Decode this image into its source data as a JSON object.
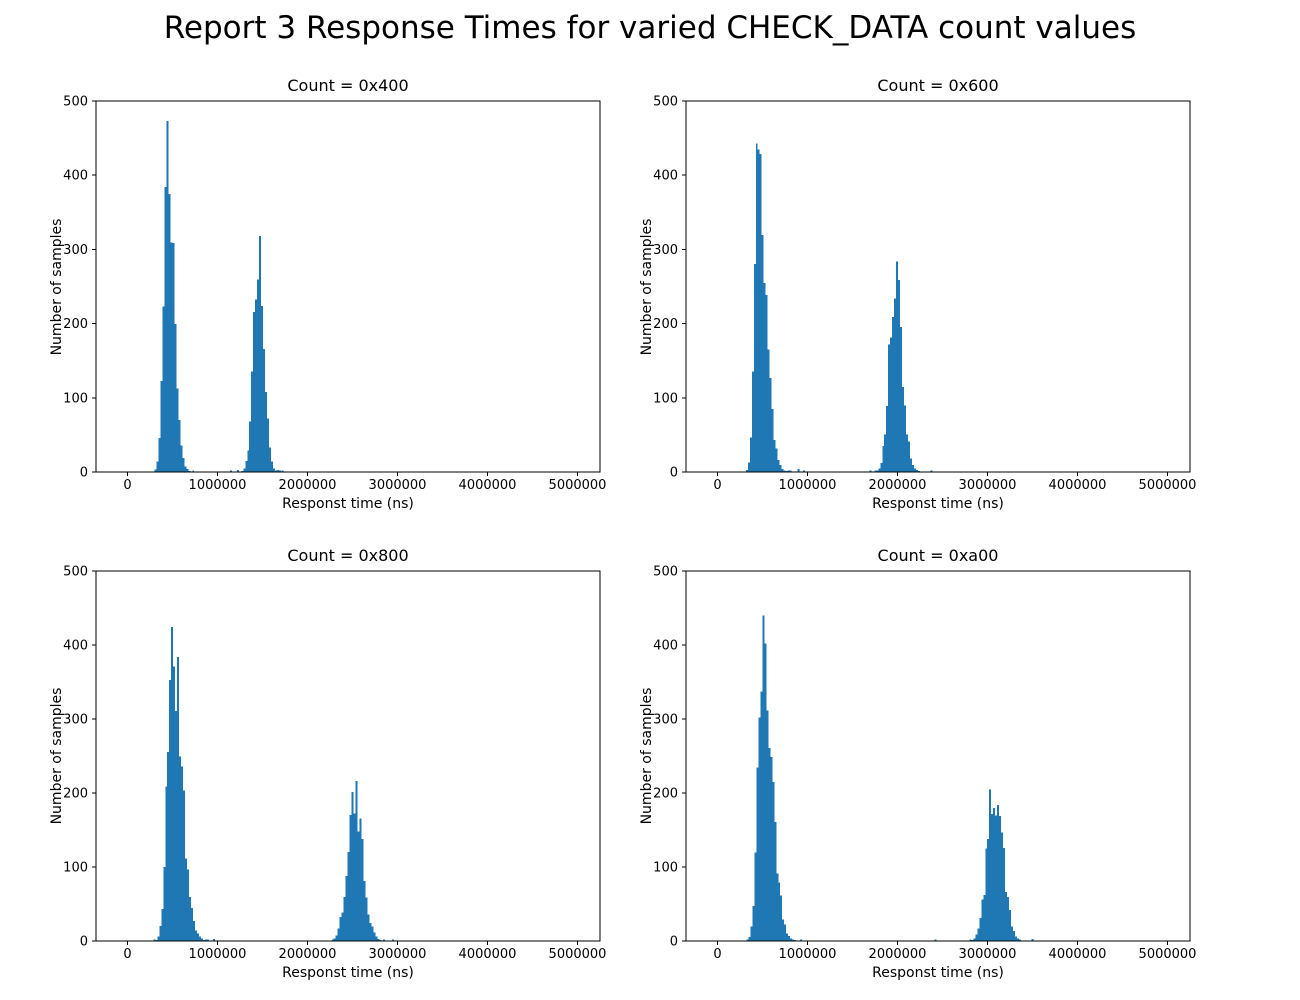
{
  "figure": {
    "title": "Report 3 Response Times for varied CHECK_DATA count values",
    "background_color": "#ffffff",
    "bar_color": "#1f77b4",
    "axis_color": "#000000"
  },
  "chart_data": [
    {
      "type": "bar",
      "key": "0x400",
      "title": "Count = 0x400",
      "xlabel": "Responst time (ns)",
      "ylabel": "Number of samples",
      "xlim": [
        -350000,
        5250000
      ],
      "ylim": [
        0,
        500
      ],
      "grid": false,
      "legend": null,
      "xticks": [
        0,
        1000000,
        2000000,
        3000000,
        4000000,
        5000000
      ],
      "xticklabels": [
        "0",
        "1000000",
        "2000000",
        "3000000",
        "4000000",
        "5000000"
      ],
      "yticks": [
        0,
        100,
        200,
        300,
        400,
        500
      ],
      "yticklabels": [
        "0",
        "100",
        "200",
        "300",
        "400",
        "500"
      ],
      "bin_width": 22000,
      "peaks": [
        {
          "center": 445000,
          "sigma_left": 42000,
          "sigma_right": 70000,
          "peak_count": 473
        },
        {
          "center": 1450000,
          "sigma_left": 52000,
          "sigma_right": 62000,
          "peak_count": 318
        }
      ],
      "extra_bars": [
        {
          "x": 1150000,
          "h": 2
        },
        {
          "x": 1230000,
          "h": 3
        },
        {
          "x": 1720000,
          "h": 2
        }
      ]
    },
    {
      "type": "bar",
      "key": "0x600",
      "title": "Count = 0x600",
      "xlabel": "Responst time (ns)",
      "ylabel": "Number of samples",
      "xlim": [
        -350000,
        5250000
      ],
      "ylim": [
        0,
        500
      ],
      "grid": false,
      "legend": null,
      "xticks": [
        0,
        1000000,
        2000000,
        3000000,
        4000000,
        5000000
      ],
      "xticklabels": [
        "0",
        "1000000",
        "2000000",
        "3000000",
        "4000000",
        "5000000"
      ],
      "yticks": [
        0,
        100,
        200,
        300,
        400,
        500
      ],
      "yticklabels": [
        "0",
        "100",
        "200",
        "300",
        "400",
        "500"
      ],
      "bin_width": 22000,
      "peaks": [
        {
          "center": 450000,
          "sigma_left": 40000,
          "sigma_right": 90000,
          "peak_count": 443
        },
        {
          "center": 1970000,
          "sigma_left": 62000,
          "sigma_right": 80000,
          "peak_count": 284
        }
      ],
      "extra_bars": [
        {
          "x": 900000,
          "h": 4
        },
        {
          "x": 960000,
          "h": 2
        },
        {
          "x": 1700000,
          "h": 2
        },
        {
          "x": 2380000,
          "h": 2
        }
      ]
    },
    {
      "type": "bar",
      "key": "0x800",
      "title": "Count = 0x800",
      "xlabel": "Responst time (ns)",
      "ylabel": "Number of samples",
      "xlim": [
        -350000,
        5250000
      ],
      "ylim": [
        0,
        500
      ],
      "grid": false,
      "legend": null,
      "xticks": [
        0,
        1000000,
        2000000,
        3000000,
        4000000,
        5000000
      ],
      "xticklabels": [
        "0",
        "1000000",
        "2000000",
        "3000000",
        "4000000",
        "5000000"
      ],
      "yticks": [
        0,
        100,
        200,
        300,
        400,
        500
      ],
      "yticklabels": [
        "0",
        "100",
        "200",
        "300",
        "400",
        "500"
      ],
      "bin_width": 22000,
      "peaks": [
        {
          "center": 495000,
          "sigma_left": 52000,
          "sigma_right": 105000,
          "peak_count": 424
        },
        {
          "center": 2520000,
          "sigma_left": 78000,
          "sigma_right": 92000,
          "peak_count": 216
        }
      ],
      "extra_bars": [
        {
          "x": 960000,
          "h": 3
        },
        {
          "x": 1890000,
          "h": 1
        },
        {
          "x": 2950000,
          "h": 2
        }
      ]
    },
    {
      "type": "bar",
      "key": "0xa00",
      "title": "Count = 0xa00",
      "xlabel": "Responst time (ns)",
      "ylabel": "Number of samples",
      "xlim": [
        -350000,
        5250000
      ],
      "ylim": [
        0,
        500
      ],
      "grid": false,
      "legend": null,
      "xticks": [
        0,
        1000000,
        2000000,
        3000000,
        4000000,
        5000000
      ],
      "xticklabels": [
        "0",
        "1000000",
        "2000000",
        "3000000",
        "4000000",
        "5000000"
      ],
      "yticks": [
        0,
        100,
        200,
        300,
        400,
        500
      ],
      "yticklabels": [
        "0",
        "100",
        "200",
        "300",
        "400",
        "500"
      ],
      "bin_width": 22000,
      "peaks": [
        {
          "center": 500000,
          "sigma_left": 50000,
          "sigma_right": 105000,
          "peak_count": 440
        },
        {
          "center": 3080000,
          "sigma_left": 80000,
          "sigma_right": 90000,
          "peak_count": 205
        }
      ],
      "extra_bars": [
        {
          "x": 2420000,
          "h": 2
        },
        {
          "x": 3500000,
          "h": 3
        },
        {
          "x": 3870000,
          "h": 1
        }
      ]
    }
  ]
}
